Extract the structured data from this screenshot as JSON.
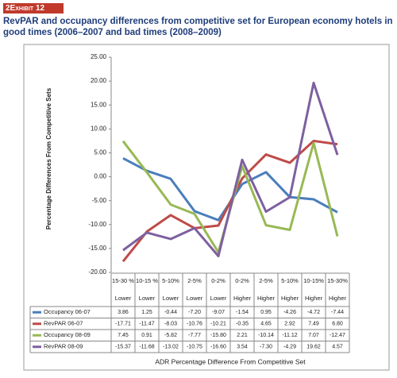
{
  "header": {
    "exhibit": "2Exhibit 12"
  },
  "chart_data": {
    "type": "line",
    "title": "RevPAR and occupancy differences from competitive set for European economy  hotels in good times (2006–2007 and bad times (2008–2009)",
    "y_label": "Percentage Differences From Competitive Sets",
    "x_label": "ADR Percentage Difference From Competitive Set",
    "categories": [
      "15-30 %",
      "10-15 %",
      "5-10%",
      "2-5%",
      "0-2%",
      "0-2%",
      "2-5%",
      "5-10%",
      "10-15%",
      "15-30%"
    ],
    "category_groups": [
      "Lower",
      "Lower",
      "Lower",
      "Lower",
      "Lower",
      "Higher",
      "Higher",
      "Higher",
      "Higher",
      "Higher"
    ],
    "ylim": [
      -20,
      25
    ],
    "yticks": [
      {
        "value": -20,
        "label": "-20.00"
      },
      {
        "value": -15,
        "label": "-15.00"
      },
      {
        "value": -10,
        "label": "-10.00"
      },
      {
        "value": -5,
        "label": "-5.00"
      },
      {
        "value": 0,
        "label": "0.00"
      },
      {
        "value": 5,
        "label": "5.00"
      },
      {
        "value": 10,
        "label": "10.00"
      },
      {
        "value": 15,
        "label": "15.00"
      },
      {
        "value": 20,
        "label": "20.00"
      },
      {
        "value": 25,
        "label": "25.00"
      }
    ],
    "grid": false,
    "series": [
      {
        "name": "Occupancy 06-07",
        "color": "#4a7ebb",
        "values": [
          3.86,
          1.25,
          -0.44,
          -7.2,
          -9.07,
          -1.54,
          0.95,
          -4.26,
          -4.72,
          -7.44
        ],
        "value_labels": [
          "3.86",
          "1.25",
          "-0.44",
          "-7.20",
          "-9.07",
          "-1.54",
          "0.95",
          "-4.26",
          "-4.72",
          "-7.44"
        ]
      },
      {
        "name": "RevPAR 06-07",
        "color": "#be4b48",
        "values": [
          -17.71,
          -11.47,
          -8.03,
          -10.76,
          -10.21,
          -0.35,
          4.65,
          2.92,
          7.49,
          6.8
        ],
        "value_labels": [
          "-17.71",
          "-11.47",
          "-8.03",
          "-10.76",
          "-10.21",
          "-0.35",
          "4.65",
          "2.92",
          "7.49",
          "6.80"
        ]
      },
      {
        "name": "Occupancy 08-09",
        "color": "#98b954",
        "values": [
          7.45,
          0.91,
          -5.82,
          -7.77,
          -15.8,
          2.21,
          -10.14,
          -11.12,
          7.07,
          -12.47
        ],
        "value_labels": [
          "7.45",
          "0.91",
          "-5.82",
          "-7.77",
          "-15.80",
          "2.21",
          "-10.14",
          "-11.12",
          "7.07",
          "-12.47"
        ]
      },
      {
        "name": "RevPAR 08-09",
        "color": "#7d60a0",
        "values": [
          -15.37,
          -11.68,
          -13.02,
          -10.75,
          -16.6,
          3.54,
          -7.3,
          -4.29,
          19.62,
          4.57
        ],
        "value_labels": [
          "-15.37",
          "-11.68",
          "-13.02",
          "-10.75",
          "-16.60",
          "3.54",
          "-7.30",
          "-4.29",
          "19.62",
          "4.57"
        ]
      }
    ]
  }
}
